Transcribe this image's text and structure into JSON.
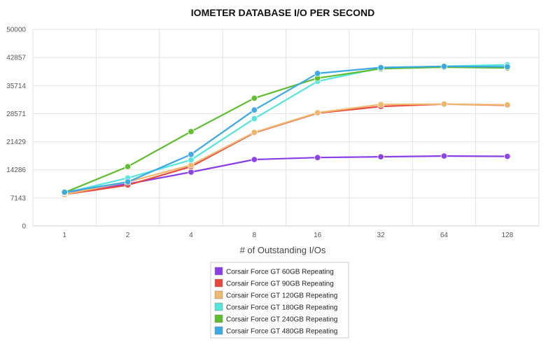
{
  "chart_data": {
    "type": "line",
    "title": "IOMETER DATABASE I/O PER SECOND",
    "xlabel": "# of Outstanding I/Os",
    "ylabel": "",
    "categories": [
      "1",
      "2",
      "4",
      "8",
      "16",
      "32",
      "64",
      "128"
    ],
    "yticks": [
      "0",
      "7143",
      "14286",
      "21429",
      "28571",
      "35714",
      "42857",
      "50000"
    ],
    "ylim": [
      0,
      50000
    ],
    "grid": true,
    "legend_position": "bottom",
    "series": [
      {
        "name": "Corsair Force GT 60GB Repeating",
        "color": "#8a3ee6",
        "values": [
          8300,
          10700,
          13700,
          16900,
          17400,
          17600,
          17800,
          17700
        ]
      },
      {
        "name": "Corsair Force GT 90GB Repeating",
        "color": "#e9473e",
        "values": [
          8000,
          10400,
          15100,
          23700,
          28700,
          30400,
          31000,
          30700
        ]
      },
      {
        "name": "Corsair Force GT 120GB Repeating",
        "color": "#f0b86d",
        "values": [
          8000,
          11200,
          15500,
          23800,
          28800,
          30900,
          31000,
          30800
        ]
      },
      {
        "name": "Corsair Force GT 180GB Repeating",
        "color": "#54e6da",
        "values": [
          8400,
          12200,
          16800,
          27300,
          36800,
          40200,
          40600,
          41000
        ]
      },
      {
        "name": "Corsair Force GT 240GB Repeating",
        "color": "#5dbd2d",
        "values": [
          8500,
          15100,
          24000,
          32500,
          37600,
          40000,
          40400,
          40200
        ]
      },
      {
        "name": "Corsair Force GT 480GB Repeating",
        "color": "#3ba9e5",
        "values": [
          8600,
          11200,
          18200,
          29500,
          38800,
          40300,
          40600,
          40500
        ]
      }
    ]
  }
}
